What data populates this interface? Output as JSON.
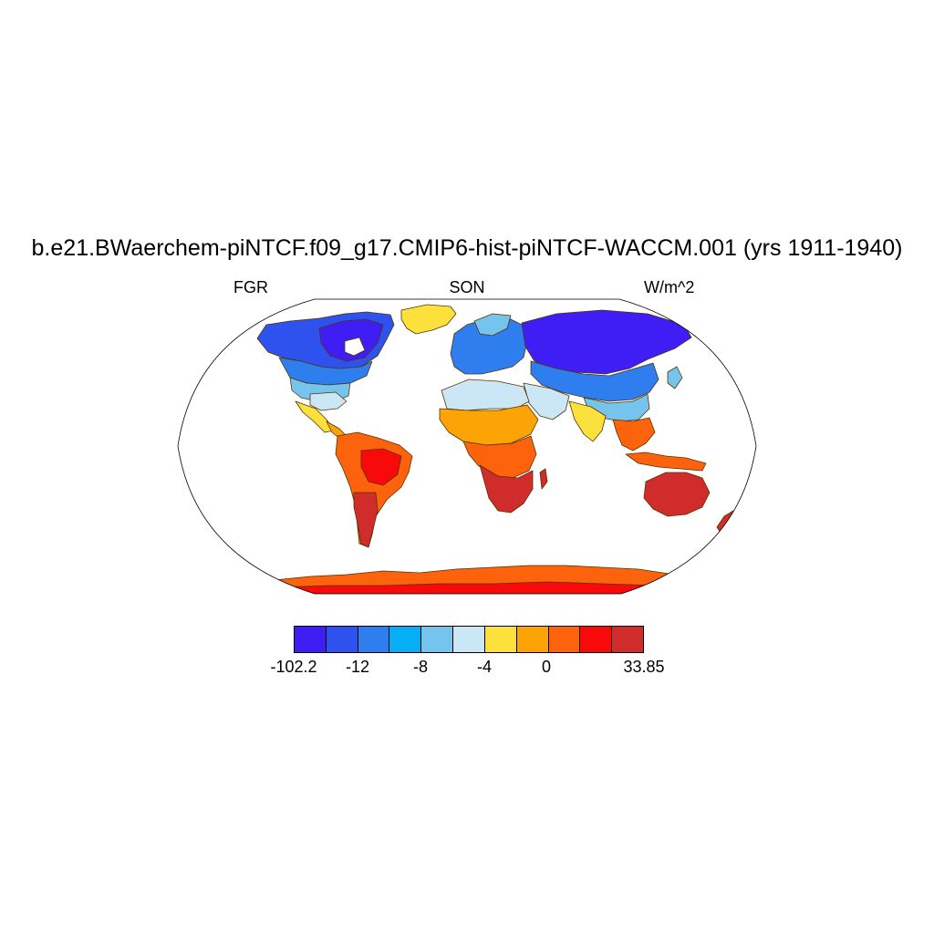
{
  "title": "b.e21.BWaerchem-piNTCF.f09_g17.CMIP6-hist-piNTCF-WACCM.001 (yrs 1911-1940)",
  "left_label": "FGR",
  "center_label": "SON",
  "right_label": "W/m^2",
  "colorbar": {
    "colors": [
      "#3e1ef5",
      "#2e52ee",
      "#2f7ef0",
      "#06aef6",
      "#74c4ee",
      "#cbe6f5",
      "#fce03c",
      "#fca406",
      "#fd620c",
      "#f80a0a",
      "#d12c2c"
    ],
    "labels": [
      "-102.2",
      "-12",
      "-8",
      "-4",
      "0",
      "33.85"
    ]
  },
  "chart_data": {
    "type": "heatmap",
    "projection": "Robinson",
    "field": "FGR",
    "season": "SON",
    "units": "W/m^2",
    "levels": [
      -102.2,
      -16,
      -12,
      -10,
      -8,
      -6,
      -4,
      -2,
      0,
      2,
      4,
      33.85
    ],
    "regions": [
      {
        "region": "Antarctica",
        "value": 3
      },
      {
        "region": "Australia",
        "value": 6
      },
      {
        "region": "Southern Africa",
        "value": 6
      },
      {
        "region": "Sahel / Central Africa",
        "value": -1
      },
      {
        "region": "Sahara",
        "value": -5
      },
      {
        "region": "South America",
        "value": 2
      },
      {
        "region": "Central America / Mexico",
        "value": -2
      },
      {
        "region": "India",
        "value": -1
      },
      {
        "region": "Southeast Asia",
        "value": 2
      },
      {
        "region": "Southern USA",
        "value": -7
      },
      {
        "region": "Canada",
        "value": -16
      },
      {
        "region": "Greenland",
        "value": -4
      },
      {
        "region": "Europe",
        "value": -9
      },
      {
        "region": "Central Asia",
        "value": -7
      },
      {
        "region": "Northern Siberia",
        "value": -14
      }
    ]
  }
}
